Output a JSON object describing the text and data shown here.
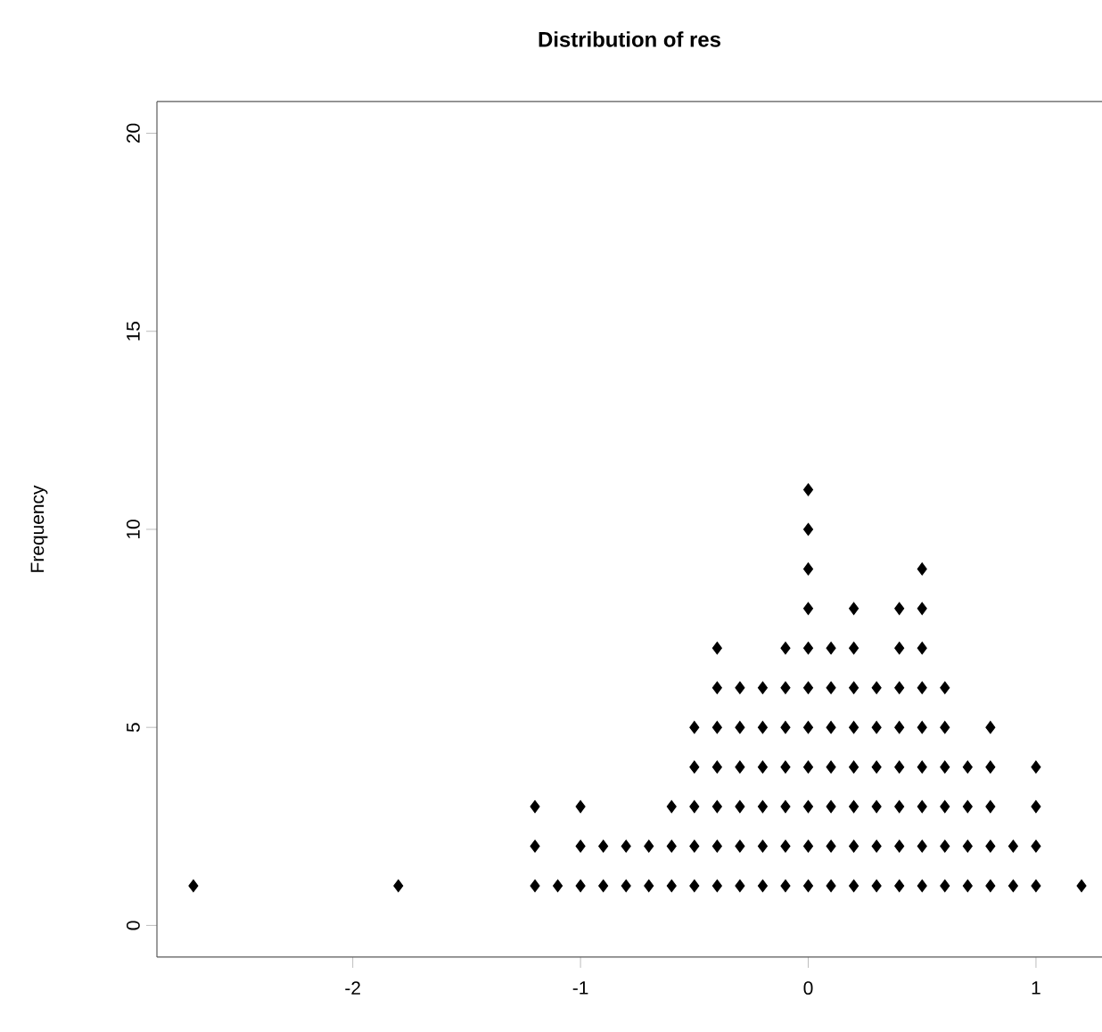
{
  "chart_data": {
    "type": "scatter",
    "title": "Distribution of res",
    "ylabel": "Frequency",
    "x": [
      -2.7,
      -1.8,
      -1.2,
      -1.2,
      -1.2,
      -1.1,
      -1,
      -1,
      -1,
      -0.9,
      -0.9,
      -0.8,
      -0.8,
      -0.7,
      -0.7,
      -0.6,
      -0.6,
      -0.6,
      -0.5,
      -0.5,
      -0.5,
      -0.5,
      -0.5,
      -0.4,
      -0.4,
      -0.4,
      -0.4,
      -0.4,
      -0.4,
      -0.4,
      -0.3,
      -0.3,
      -0.3,
      -0.3,
      -0.3,
      -0.3,
      -0.2,
      -0.2,
      -0.2,
      -0.2,
      -0.2,
      -0.2,
      -0.1,
      -0.1,
      -0.1,
      -0.1,
      -0.1,
      -0.1,
      -0.1,
      0,
      0,
      0,
      0,
      0,
      0,
      0,
      0,
      0,
      0,
      0,
      0.1,
      0.1,
      0.1,
      0.1,
      0.1,
      0.1,
      0.1,
      0.2,
      0.2,
      0.2,
      0.2,
      0.2,
      0.2,
      0.2,
      0.2,
      0.3,
      0.3,
      0.3,
      0.3,
      0.3,
      0.3,
      0.4,
      0.4,
      0.4,
      0.4,
      0.4,
      0.4,
      0.4,
      0.4,
      0.5,
      0.5,
      0.5,
      0.5,
      0.5,
      0.5,
      0.5,
      0.5,
      0.5,
      0.6,
      0.6,
      0.6,
      0.6,
      0.6,
      0.6,
      0.7,
      0.7,
      0.7,
      0.7,
      0.8,
      0.8,
      0.8,
      0.8,
      0.8,
      0.9,
      0.9,
      1,
      1,
      1,
      1,
      1.2
    ],
    "values": [
      1,
      1,
      1,
      2,
      3,
      1,
      1,
      2,
      3,
      1,
      2,
      1,
      2,
      1,
      2,
      1,
      2,
      3,
      1,
      2,
      3,
      4,
      5,
      1,
      2,
      3,
      4,
      5,
      6,
      7,
      1,
      2,
      3,
      4,
      5,
      6,
      1,
      2,
      3,
      4,
      5,
      6,
      1,
      2,
      3,
      4,
      5,
      6,
      7,
      1,
      2,
      3,
      4,
      5,
      6,
      7,
      8,
      9,
      10,
      11,
      1,
      2,
      3,
      4,
      5,
      6,
      7,
      1,
      2,
      3,
      4,
      5,
      6,
      7,
      8,
      1,
      2,
      3,
      4,
      5,
      6,
      1,
      2,
      3,
      4,
      5,
      6,
      7,
      8,
      1,
      2,
      3,
      4,
      5,
      6,
      7,
      8,
      9,
      1,
      2,
      3,
      4,
      5,
      6,
      1,
      2,
      3,
      4,
      1,
      2,
      3,
      4,
      5,
      1,
      2,
      1,
      2,
      3,
      4,
      1
    ],
    "color": "#000000",
    "marker": "diamond",
    "xlim": [
      -2.86,
      1.29
    ],
    "ylim": [
      -0.8,
      20.8
    ],
    "xticks": [
      -2,
      -1,
      0,
      1
    ],
    "yticks": [
      0,
      5,
      10,
      15,
      20
    ]
  }
}
